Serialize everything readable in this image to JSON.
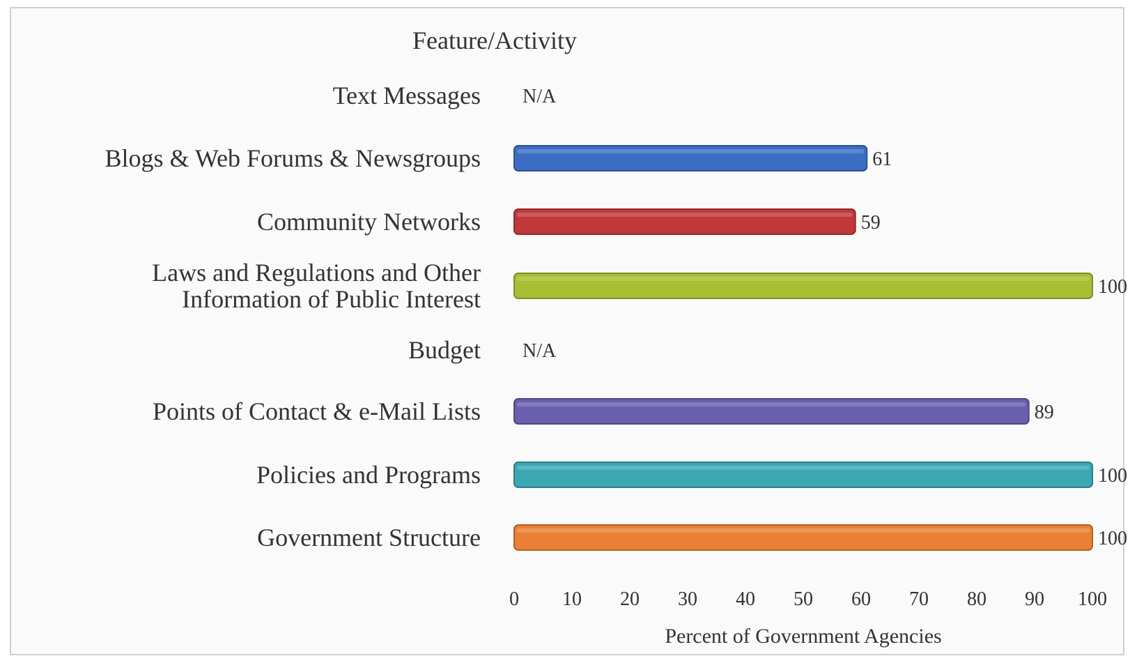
{
  "chart_data": {
    "type": "bar",
    "orientation": "horizontal",
    "header": "Feature/Activity",
    "xlabel": "Percent of Government Agencies",
    "ylabel": "",
    "xlim": [
      0,
      100
    ],
    "xticks": [
      "0",
      "10",
      "20",
      "30",
      "40",
      "50",
      "60",
      "70",
      "80",
      "90",
      "100"
    ],
    "grid": false,
    "categories": [
      {
        "label_lines": [
          "Text Messages"
        ],
        "value": null,
        "value_label": "N/A",
        "color": ""
      },
      {
        "label_lines": [
          "Blogs & Web Forums & Newsgroups"
        ],
        "value": 61,
        "value_label": "61",
        "color": "#3b6dc4"
      },
      {
        "label_lines": [
          "Community Networks"
        ],
        "value": 59,
        "value_label": "59",
        "color": "#c0383a"
      },
      {
        "label_lines": [
          "Laws and Regulations and Other",
          "Information of Public Interest"
        ],
        "value": 100,
        "value_label": "100",
        "color": "#a7bf32"
      },
      {
        "label_lines": [
          "Budget"
        ],
        "value": null,
        "value_label": "N/A",
        "color": ""
      },
      {
        "label_lines": [
          "Points of Contact & e-Mail Lists"
        ],
        "value": 89,
        "value_label": "89",
        "color": "#6a5fae"
      },
      {
        "label_lines": [
          "Policies and Programs"
        ],
        "value": 100,
        "value_label": "100",
        "color": "#3ba7b3"
      },
      {
        "label_lines": [
          "Government Structure"
        ],
        "value": 100,
        "value_label": "100",
        "color": "#ea8035"
      }
    ]
  }
}
